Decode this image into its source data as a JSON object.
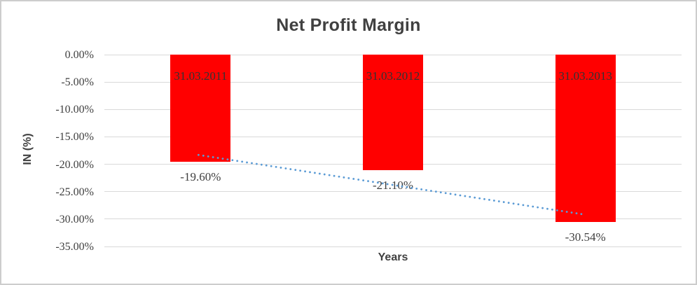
{
  "chart_data": {
    "type": "bar",
    "title": "Net Profit Margin",
    "xlabel": "Years",
    "ylabel": "IN (%)",
    "categories": [
      "31.03.2011",
      "31.03.2012",
      "31.03.2013"
    ],
    "values": [
      -19.6,
      -21.1,
      -30.54
    ],
    "value_labels": [
      "-19.60%",
      "-21.10%",
      "-30.54%"
    ],
    "y_ticks": [
      "0.00%",
      "-5.00%",
      "-10.00%",
      "-15.00%",
      "-20.00%",
      "-25.00%",
      "-30.00%",
      "-35.00%"
    ],
    "y_tick_values": [
      0,
      -5,
      -10,
      -15,
      -20,
      -25,
      -30,
      -35
    ],
    "ylim": [
      -35,
      0
    ],
    "grid": true,
    "legend": "none",
    "bar_color": "#ff0000",
    "grid_color": "#d9d9d9",
    "text_color": "#404040",
    "border_color": "#cdcdcd",
    "trendline": {
      "type": "linear",
      "style": "dotted",
      "color": "#5b9bd5",
      "start_value": -18.3,
      "end_value": -29.2
    }
  }
}
